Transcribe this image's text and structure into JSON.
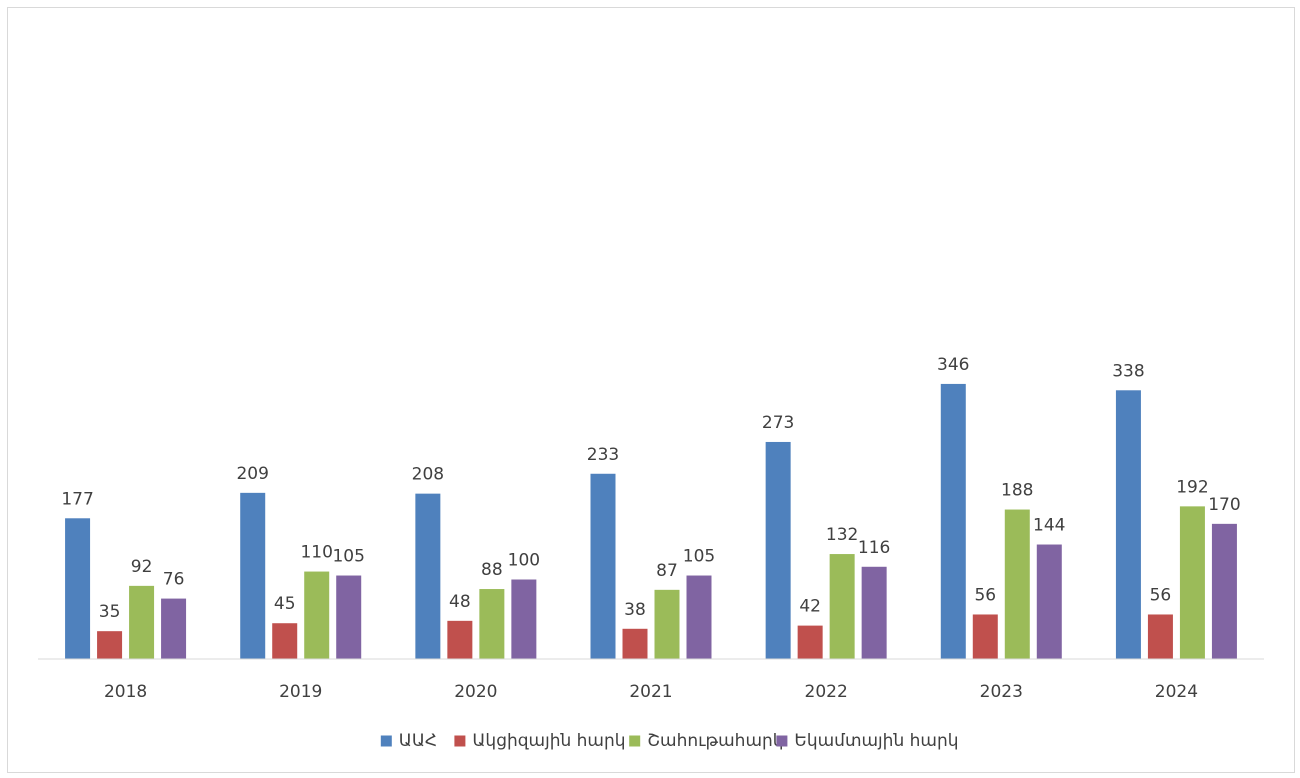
{
  "chart_data": {
    "type": "bar",
    "categories": [
      "2018",
      "2019",
      "2020",
      "2021",
      "2022",
      "2023",
      "2024"
    ],
    "series": [
      {
        "name": "ԱԱՀ",
        "color": "#4F81BD",
        "values": [
          177,
          209,
          208,
          233,
          273,
          346,
          338
        ]
      },
      {
        "name": "Ակցիզային հարկ",
        "color": "#C0504D",
        "values": [
          35,
          45,
          48,
          38,
          42,
          56,
          56
        ]
      },
      {
        "name": "Շահութահարկ",
        "color": "#9BBB59",
        "values": [
          92,
          110,
          88,
          87,
          132,
          188,
          192
        ]
      },
      {
        "name": "Եկամտային հարկ",
        "color": "#8064A2",
        "values": [
          76,
          105,
          100,
          105,
          116,
          144,
          170
        ]
      }
    ],
    "ylim": [
      0,
      380
    ],
    "legend_position": "bottom",
    "grid": false,
    "data_labels": true
  }
}
